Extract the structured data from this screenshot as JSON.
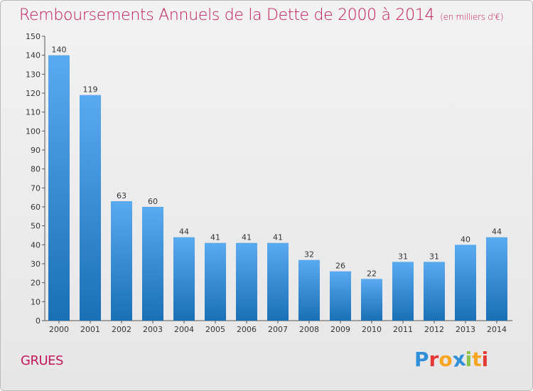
{
  "title": "Remboursements Annuels de la Dette de 2000 à 2014",
  "title_unit": "(en milliers d'€)",
  "commune": "GRUES",
  "logo_text": "Proxiti",
  "colors": {
    "title": "#c2185b",
    "bar_top": "#5aaaf0",
    "bar_bottom": "#1a6fb5",
    "logo": [
      "#2f8fd8",
      "#e53935",
      "#f6a623",
      "#2f8fd8",
      "#8bc34a",
      "#f6a623",
      "#e53935"
    ]
  },
  "chart_data": {
    "type": "bar",
    "title": "Remboursements Annuels de la Dette de 2000 à 2014",
    "xlabel": "",
    "ylabel": "",
    "categories": [
      "2000",
      "2001",
      "2002",
      "2003",
      "2004",
      "2005",
      "2006",
      "2007",
      "2008",
      "2009",
      "2010",
      "2011",
      "2012",
      "2013",
      "2014"
    ],
    "values": [
      140,
      119,
      63,
      60,
      44,
      41,
      41,
      41,
      32,
      26,
      22,
      31,
      31,
      40,
      44
    ],
    "ylim": [
      0,
      150
    ],
    "yticks": [
      0,
      10,
      20,
      30,
      40,
      50,
      60,
      70,
      80,
      90,
      100,
      110,
      120,
      130,
      140,
      150
    ],
    "grid": false,
    "data_labels": true
  }
}
